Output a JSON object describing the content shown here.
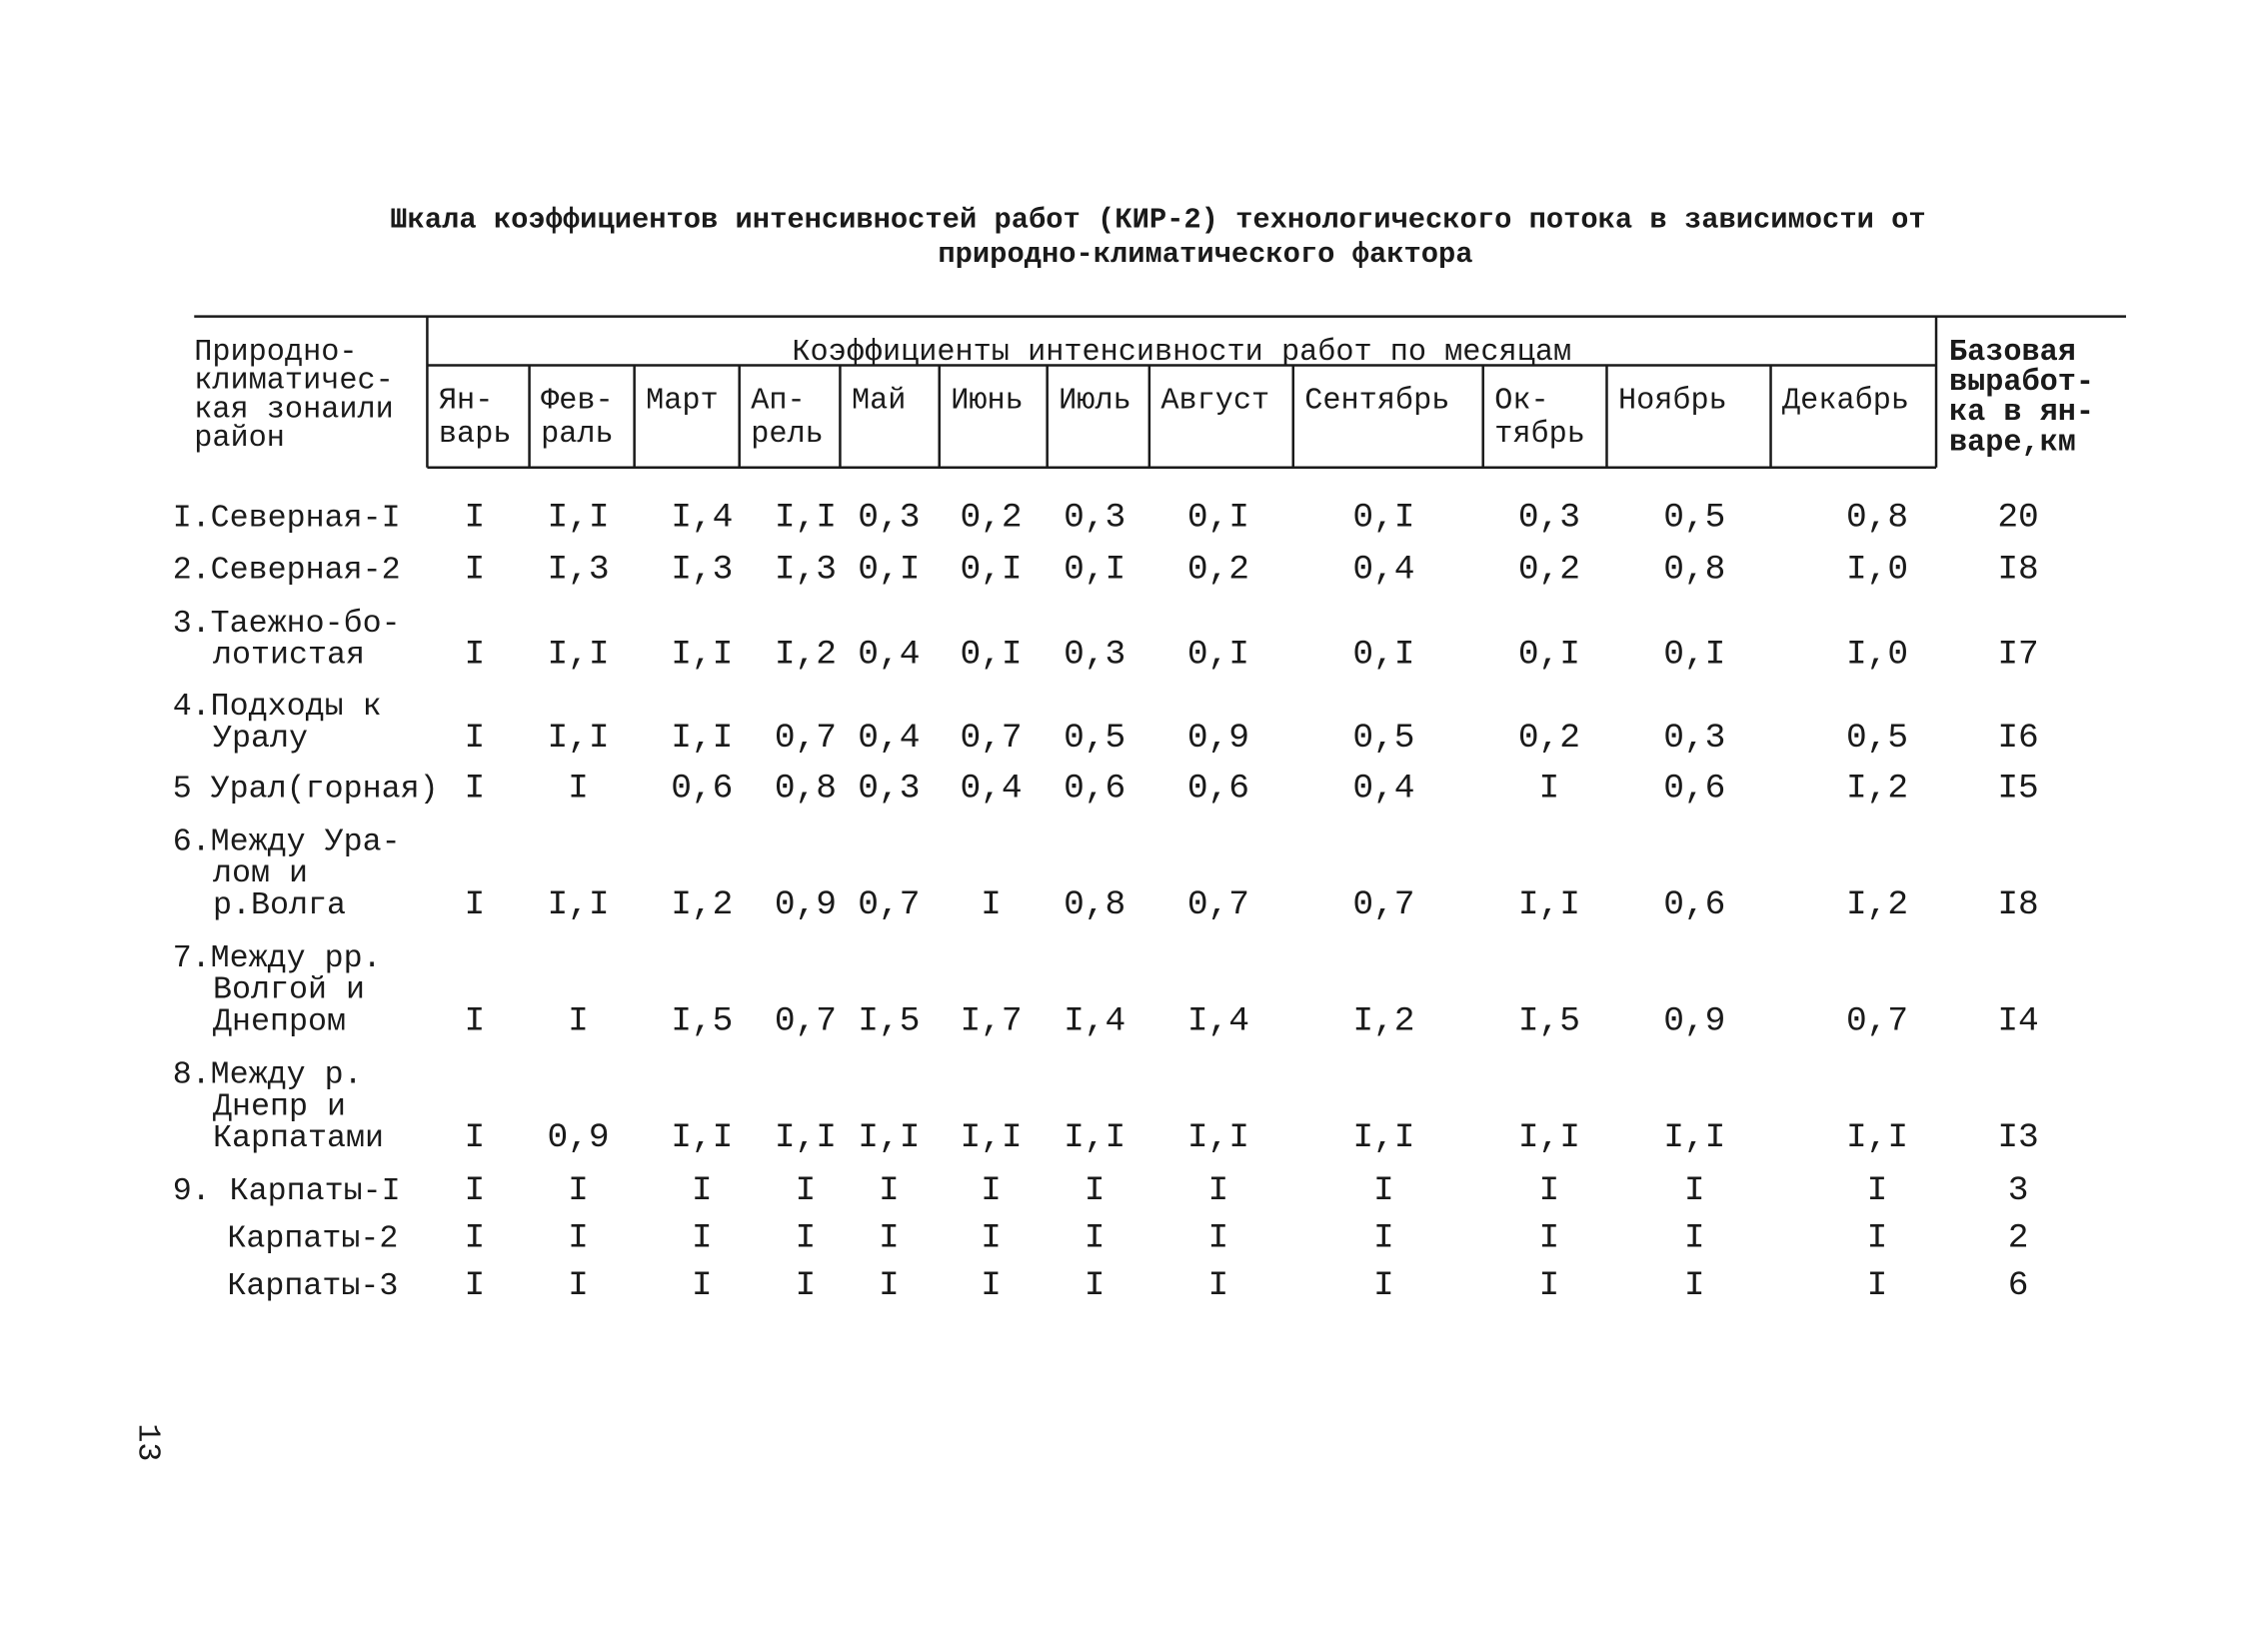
{
  "title": [
    "Шкала коэффициентов интенсивностей работ (КИР-2) технологического потока в зависимости от",
    "природно-климатического фактора"
  ],
  "table": {
    "header": {
      "zone": [
        "Природно-",
        "климатичес-",
        "кая зонаили",
        "район"
      ],
      "group": "Коэффициенты интенсивности работ по месяцам",
      "months": [
        [
          "Ян-",
          "варь"
        ],
        [
          "Фев-",
          "раль"
        ],
        [
          "Март"
        ],
        [
          "Ап-",
          "рель"
        ],
        [
          "Май"
        ],
        [
          "Июнь"
        ],
        [
          "Июль"
        ],
        [
          "Август"
        ],
        [
          "Сентябрь"
        ],
        [
          "Ок-",
          "тябрь"
        ],
        [
          "Ноябрь"
        ],
        [
          "Декабрь"
        ]
      ],
      "base": [
        "Базовая",
        "выработ-",
        "ка в ян-",
        "варе,км"
      ]
    },
    "rows": [
      {
        "zone": [
          "I.Северная-I"
        ],
        "values": [
          "I",
          "I,I",
          "I,4",
          "I,I",
          "0,3",
          "0,2",
          "0,3",
          "0,I",
          "0,I",
          "0,3",
          "0,5",
          "0,8"
        ],
        "base": "20"
      },
      {
        "zone": [
          "2.Северная-2"
        ],
        "values": [
          "I",
          "I,3",
          "I,3",
          "I,3",
          "0,I",
          "0,I",
          "0,I",
          "0,2",
          "0,4",
          "0,2",
          "0,8",
          "I,0"
        ],
        "base": "I8"
      },
      {
        "zone": [
          "3.Таежно-бо-",
          "лотистая"
        ],
        "values": [
          "I",
          "I,I",
          "I,I",
          "I,2",
          "0,4",
          "0,I",
          "0,3",
          "0,I",
          "0,I",
          "0,I",
          "0,I",
          "I,0"
        ],
        "base": "I7"
      },
      {
        "zone": [
          "4.Подходы к",
          "Уралу"
        ],
        "values": [
          "I",
          "I,I",
          "I,I",
          "0,7",
          "0,4",
          "0,7",
          "0,5",
          "0,9",
          "0,5",
          "0,2",
          "0,3",
          "0,5"
        ],
        "base": "I6"
      },
      {
        "zone": [
          "5 Урал(горная)"
        ],
        "values": [
          "I",
          "I",
          "0,6",
          "0,8",
          "0,3",
          "0,4",
          "0,6",
          "0,6",
          "0,4",
          "I",
          "0,6",
          "I,2"
        ],
        "base": "I5"
      },
      {
        "zone": [
          "6.Между Ура-",
          "лом и",
          "р.Волга"
        ],
        "values": [
          "I",
          "I,I",
          "I,2",
          "0,9",
          "0,7",
          "I",
          "0,8",
          "0,7",
          "0,7",
          "I,I",
          "0,6",
          "I,2"
        ],
        "base": "I8"
      },
      {
        "zone": [
          "7.Между рр.",
          "Волгой и",
          "Днепром"
        ],
        "values": [
          "I",
          "I",
          "I,5",
          "0,7",
          "I,5",
          "I,7",
          "I,4",
          "I,4",
          "I,2",
          "I,5",
          "0,9",
          "0,7"
        ],
        "base": "I4"
      },
      {
        "zone": [
          "8.Между р.",
          "Днепр и",
          "Карпатами"
        ],
        "values": [
          "I",
          "0,9",
          "I,I",
          "I,I",
          "I,I",
          "I,I",
          "I,I",
          "I,I",
          "I,I",
          "I,I",
          "I,I",
          "I,I"
        ],
        "base": "I3"
      },
      {
        "zone": [
          "9. Карпаты-I"
        ],
        "values": [
          "I",
          "I",
          "I",
          "I",
          "I",
          "I",
          "I",
          "I",
          "I",
          "I",
          "I",
          "I"
        ],
        "base": "3"
      },
      {
        "zone": [
          "Карпаты-2"
        ],
        "values": [
          "I",
          "I",
          "I",
          "I",
          "I",
          "I",
          "I",
          "I",
          "I",
          "I",
          "I",
          "I"
        ],
        "base": "2"
      },
      {
        "zone": [
          "Карпаты-3"
        ],
        "values": [
          "I",
          "I",
          "I",
          "I",
          "I",
          "I",
          "I",
          "I",
          "I",
          "I",
          "I",
          "I"
        ],
        "base": "6"
      }
    ]
  },
  "page_number": "13"
}
